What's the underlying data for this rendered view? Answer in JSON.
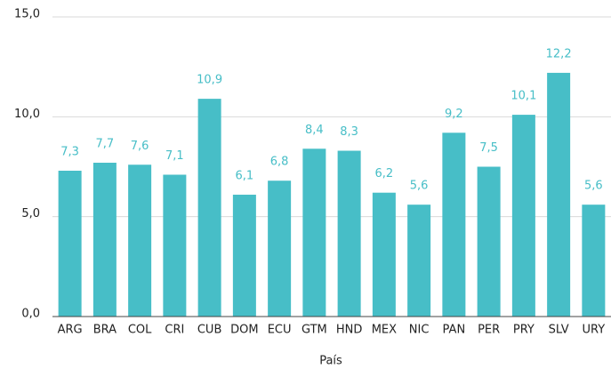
{
  "chart_data": {
    "type": "bar",
    "x_label": "País",
    "categories": [
      "ARG",
      "BRA",
      "COL",
      "CRI",
      "CUB",
      "DOM",
      "ECU",
      "GTM",
      "HND",
      "MEX",
      "NIC",
      "PAN",
      "PER",
      "PRY",
      "SLV",
      "URY"
    ],
    "values": [
      7.3,
      7.7,
      7.6,
      7.1,
      10.9,
      6.1,
      6.8,
      8.4,
      8.3,
      6.2,
      5.6,
      9.2,
      7.5,
      10.1,
      12.2,
      5.6
    ],
    "value_labels": [
      "7,3",
      "7,7",
      "7,6",
      "7,1",
      "10,9",
      "6,1",
      "6,8",
      "8,4",
      "8,3",
      "6,2",
      "5,6",
      "9,2",
      "7,5",
      "10,1",
      "12,2",
      "5,6"
    ],
    "color": "#47bec7",
    "ylim": [
      0,
      15
    ],
    "yticks": [
      {
        "value": 0,
        "label": "0,0"
      },
      {
        "value": 5,
        "label": "5,0"
      },
      {
        "value": 10,
        "label": "10,0"
      },
      {
        "value": 15,
        "label": "15,0"
      }
    ],
    "grid": true
  }
}
